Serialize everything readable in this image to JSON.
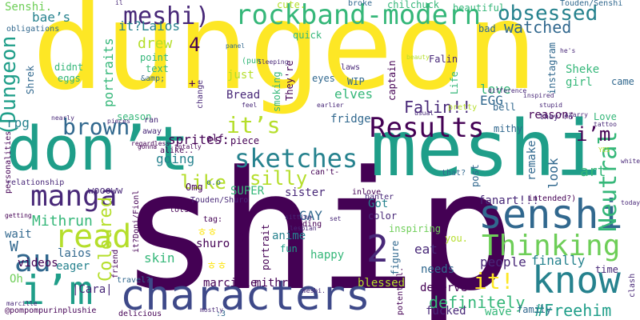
{
  "palette": {
    "background": "#ffffff",
    "yellow": "#fde725",
    "lime": "#b5de2b",
    "green": "#6ece58",
    "teal_green": "#35b779",
    "teal": "#1f9e89",
    "cyan_blue": "#26828e",
    "blue": "#31688e",
    "indigo": "#3e4989",
    "purple": "#482878",
    "dark_purple": "#440154"
  },
  "words": [
    {
      "id": "dungeon",
      "text": "dungeon"
    },
    {
      "id": "ship",
      "text": "ship"
    },
    {
      "id": "meshi-big",
      "text": "meshi"
    },
    {
      "id": "dont",
      "text": "don’t"
    },
    {
      "id": "characters",
      "text": "characters"
    },
    {
      "id": "know",
      "text": "know"
    },
    {
      "id": "senshi",
      "text": "senshi"
    },
    {
      "id": "rockband-modern",
      "text": "rockband-modern"
    },
    {
      "id": "meshi-paren",
      "text": "meshi)"
    },
    {
      "id": "results",
      "text": "Results"
    },
    {
      "id": "thinking",
      "text": "Thinking"
    },
    {
      "id": "manga",
      "text": "manga"
    },
    {
      "id": "im-big",
      "text": "i’m"
    },
    {
      "id": "au",
      "text": "au"
    },
    {
      "id": "read",
      "text": "read"
    },
    {
      "id": "brown",
      "text": "brown"
    },
    {
      "id": "dungeon-paren",
      "text": "(Dungeon"
    },
    {
      "id": "two",
      "text": "2"
    },
    {
      "id": "obsessed",
      "text": "obsessed"
    },
    {
      "id": "sketches",
      "text": "sketches"
    },
    {
      "id": "its",
      "text": "it’s"
    },
    {
      "id": "neutral",
      "text": "Neutral"
    },
    {
      "id": "it-excl",
      "text": "it!"
    },
    {
      "id": "coloured",
      "text": "Coloured"
    },
    {
      "id": "definitely",
      "text": "definitely"
    },
    {
      "id": "freehim",
      "text": "#Freehim"
    },
    {
      "id": "falin-excl",
      "text": "Falin!!"
    },
    {
      "id": "watched",
      "text": "watched"
    },
    {
      "id": "like",
      "text": "like"
    },
    {
      "id": "silly",
      "text": "silly"
    },
    {
      "id": "mithrun-cap",
      "text": "Mithrun"
    },
    {
      "id": "four",
      "text": "4"
    },
    {
      "id": "im-small",
      "text": "i’m"
    },
    {
      "id": "portraits",
      "text": "portraits"
    },
    {
      "id": "drew",
      "text": "drew"
    },
    {
      "id": "it-laios",
      "text": "it?Laios"
    },
    {
      "id": "baes",
      "text": "bae’s"
    },
    {
      "id": "senshi-dot",
      "text": "Senshi."
    },
    {
      "id": "going",
      "text": "going"
    },
    {
      "id": "sprites",
      "text": "sprites:"
    },
    {
      "id": "egg",
      "text": "EGG"
    },
    {
      "id": "love",
      "text": "love"
    },
    {
      "id": "reason",
      "text": "reason:"
    },
    {
      "id": "got",
      "text": "Got"
    },
    {
      "id": "gay",
      "text": "GAY"
    },
    {
      "id": "sister",
      "text": "sister"
    },
    {
      "id": "anime",
      "text": "anime"
    },
    {
      "id": "happy",
      "text": "happy"
    },
    {
      "id": "eat",
      "text": "eat"
    },
    {
      "id": "people",
      "text": "people"
    },
    {
      "id": "finally",
      "text": "finally"
    },
    {
      "id": "skin",
      "text": "skin"
    },
    {
      "id": "laios",
      "text": "laios"
    },
    {
      "id": "w",
      "text": "W"
    },
    {
      "id": "rpg",
      "text": "rpg"
    },
    {
      "id": "fridge",
      "text": "fridge"
    },
    {
      "id": "elves",
      "text": "elves"
    },
    {
      "id": "sheke",
      "text": "Sheke"
    },
    {
      "id": "girl",
      "text": "girl"
    },
    {
      "id": "art",
      "text": "art"
    },
    {
      "id": "look",
      "text": "look"
    },
    {
      "id": "remake",
      "text": "remake"
    },
    {
      "id": "fanart",
      "text": "fanart!!!"
    },
    {
      "id": "super",
      "text": "SUPER"
    },
    {
      "id": "woooww",
      "text": "woooww"
    },
    {
      "id": "wait",
      "text": "wait"
    },
    {
      "id": "videos",
      "text": "videos"
    },
    {
      "id": "eager",
      "text": "eager"
    },
    {
      "id": "oh",
      "text": "Oh"
    },
    {
      "id": "icara",
      "text": "|Cara|"
    },
    {
      "id": "marcille",
      "text": "marcille"
    },
    {
      "id": "mithrun",
      "text": "mithrun"
    },
    {
      "id": "taco",
      "text": "taco"
    },
    {
      "id": "blessed",
      "text": "blessed"
    },
    {
      "id": "deserve",
      "text": "deserve"
    },
    {
      "id": "family",
      "text": "family"
    },
    {
      "id": "fucked",
      "text": "fucked"
    },
    {
      "id": "wave",
      "text": "wave"
    },
    {
      "id": "time",
      "text": "time"
    },
    {
      "id": "came",
      "text": "came"
    },
    {
      "id": "shuro",
      "text": "shuro"
    },
    {
      "id": "clothes",
      "text": "clothes"
    },
    {
      "id": "portrait",
      "text": "portrait"
    },
    {
      "id": "fun",
      "text": "fun"
    },
    {
      "id": "needs",
      "text": "needs"
    },
    {
      "id": "figure",
      "text": "figure"
    },
    {
      "id": "inspiring",
      "text": "inspiring"
    },
    {
      "id": "banter",
      "text": "banter"
    },
    {
      "id": "post",
      "text": "post"
    },
    {
      "id": "color",
      "text": "color"
    },
    {
      "id": "you",
      "text": "you."
    },
    {
      "id": "elf",
      "text": "elf"
    },
    {
      "id": "piece",
      "text": "piece"
    },
    {
      "id": "omg",
      "text": "Omg"
    },
    {
      "id": "cant",
      "text": "can't-"
    },
    {
      "id": "inlove",
      "text": "inlove"
    },
    {
      "id": "mithy",
      "text": "mithy"
    },
    {
      "id": "theyre",
      "text": "They're"
    },
    {
      "id": "smoking",
      "text": "smoking"
    },
    {
      "id": "bread",
      "text": "Bread"
    },
    {
      "id": "just",
      "text": "just"
    },
    {
      "id": "change",
      "text": "change"
    },
    {
      "id": "text",
      "text": "text"
    },
    {
      "id": "point",
      "text": "point"
    },
    {
      "id": "amp",
      "text": "&amp;"
    },
    {
      "id": "eggs",
      "text": "eggs"
    },
    {
      "id": "didnt",
      "text": "didnt"
    },
    {
      "id": "shrek",
      "text": "Shrek"
    },
    {
      "id": "cute",
      "text": "cute."
    },
    {
      "id": "quick",
      "text": "quick"
    },
    {
      "id": "chilchuck",
      "text": "chilchuck"
    },
    {
      "id": "beautiful",
      "text": "beautiful"
    },
    {
      "id": "touden-senshi",
      "text": "Touden/Senshi"
    },
    {
      "id": "broke",
      "text": "broke"
    },
    {
      "id": "obligations",
      "text": "obligations"
    },
    {
      "id": "bad",
      "text": "bad"
    },
    {
      "id": "falin",
      "text": "Falin"
    },
    {
      "id": "captain",
      "text": "captain"
    },
    {
      "id": "bell",
      "text": "bell"
    },
    {
      "id": "instagram",
      "text": "instagram"
    },
    {
      "id": "life",
      "text": "Life"
    },
    {
      "id": "wip",
      "text": "WIP"
    },
    {
      "id": "eyes",
      "text": "eyes"
    },
    {
      "id": "pun",
      "text": "(pun"
    },
    {
      "id": "season",
      "text": "season"
    },
    {
      "id": "sprite-omg",
      "text": "o.o"
    },
    {
      "id": "touden-shuro",
      "text": "Touden/Shuro"
    },
    {
      "id": "it-doni",
      "text": "it?Doni/Fionl"
    },
    {
      "id": "friend",
      "text": "friend"
    },
    {
      "id": "lots",
      "text": "lots"
    },
    {
      "id": "hiding",
      "text": "hiding"
    },
    {
      "id": "tag",
      "text": "tag:"
    },
    {
      "id": "that",
      "text": "that?"
    },
    {
      "id": "intended",
      "text": "intended?)"
    },
    {
      "id": "love2",
      "text": "Love"
    },
    {
      "id": "theyre2",
      "text": "they’re"
    },
    {
      "id": "away",
      "text": "away"
    },
    {
      "id": "alike",
      "text": "alike.."
    },
    {
      "id": "relationship",
      "text": "relationship"
    },
    {
      "id": "personalities",
      "text": "personalities"
    },
    {
      "id": "travel",
      "text": "travel?"
    },
    {
      "id": "delicious",
      "text": "delicious"
    },
    {
      "id": "potential",
      "text": "potential."
    },
    {
      "id": "pompom",
      "text": "@pompompurinplushie"
    },
    {
      "id": "colon3",
      "text": ":3"
    },
    {
      "id": "ran",
      "text": "ran"
    },
    {
      "id": "clash",
      "text": "clash"
    },
    {
      "id": "pretty",
      "text": "pretty"
    },
    {
      "id": "laws",
      "text": "laws"
    },
    {
      "id": "plus",
      "text": "+"
    },
    {
      "id": "kr1",
      "text": "ㅎㅎ"
    },
    {
      "id": "kr2",
      "text": "ㅎㅎ"
    },
    {
      "id": "hes",
      "text": "he's"
    },
    {
      "id": "beauty",
      "text": "beauty"
    },
    {
      "id": "sleeping",
      "text": "Sleeping"
    },
    {
      "id": "panel",
      "text": "panel"
    },
    {
      "id": "inspired",
      "text": "inspired"
    },
    {
      "id": "yes",
      "text": "YES"
    },
    {
      "id": "today",
      "text": "today"
    },
    {
      "id": "white",
      "text": "white"
    },
    {
      "id": "tattoo",
      "text": "tattoo"
    },
    {
      "id": "getting",
      "text": "getting"
    },
    {
      "id": "feel",
      "text": "feel"
    },
    {
      "id": "regardless",
      "text": "regardless"
    },
    {
      "id": "gonna",
      "text": "gonna"
    },
    {
      "id": "totally",
      "text": "totally"
    },
    {
      "id": "set",
      "text": "set"
    },
    {
      "id": "sitting",
      "text": "sitting"
    },
    {
      "id": "lesbian",
      "text": "lesbian"
    },
    {
      "id": "meshi-small",
      "text": "meshi."
    },
    {
      "id": "earlier",
      "text": "earlier"
    },
    {
      "id": "stupid",
      "text": "stupid"
    },
    {
      "id": "usual",
      "text": "usual"
    },
    {
      "id": "difference",
      "text": "difference"
    },
    {
      "id": "nearly",
      "text": "nearly"
    },
    {
      "id": "starry",
      "text": "starry"
    },
    {
      "id": "marcille2",
      "text": "marcille"
    },
    {
      "id": "mostly",
      "text": "mostly"
    },
    {
      "id": "piece2",
      "text": "pieces"
    },
    {
      "id": "il",
      "text": "il"
    }
  ]
}
